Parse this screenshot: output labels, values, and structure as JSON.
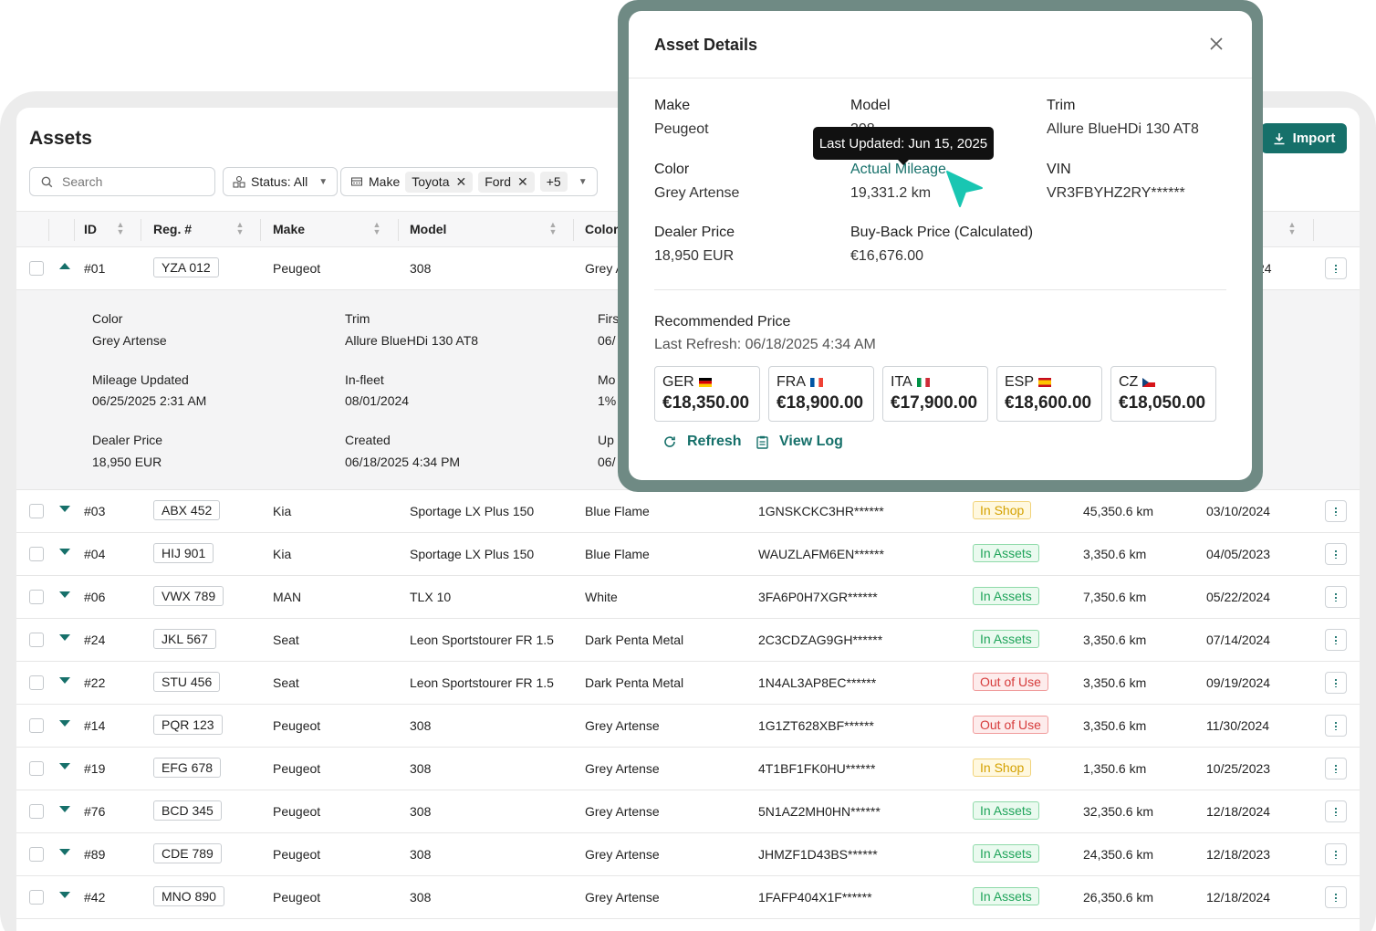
{
  "assets": {
    "title": "Assets",
    "import_label": "Import",
    "search_placeholder": "Search",
    "status_filter": "Status: All",
    "make_filter": {
      "label": "Make",
      "chips": [
        "Toyota",
        "Ford"
      ],
      "more": "+5"
    },
    "columns": [
      "ID",
      "Reg. #",
      "Make",
      "Model",
      "Color"
    ],
    "expanded_row": {
      "id": "#01",
      "reg": "YZA 012",
      "make": "Peugeot",
      "model": "308",
      "color_partial": "Grey A",
      "date_partial": "24",
      "fields": [
        {
          "label": "Color",
          "value": "Grey Artense"
        },
        {
          "label": "Trim",
          "value": "Allure BlueHDi 130 AT8"
        },
        {
          "label": "Firs",
          "value": "06/"
        },
        {
          "label": "Mileage Updated",
          "value": "06/25/2025 2:31 AM"
        },
        {
          "label": "In-fleet",
          "value": "08/01/2024"
        },
        {
          "label": "Mo",
          "value": "1%"
        },
        {
          "label": "Dealer Price",
          "value": "18,950 EUR"
        },
        {
          "label": "Created",
          "value": "06/18/2025 4:34 PM"
        },
        {
          "label": "Up",
          "value": "06/"
        }
      ]
    },
    "rows": [
      {
        "id": "#03",
        "reg": "ABX 452",
        "make": "Kia",
        "model": "Sportage LX Plus 150",
        "color": "Blue Flame",
        "vin": "1GNSKCKC3HR******",
        "status": "In Shop",
        "status_type": "shop",
        "mileage": "45,350.6 km",
        "date": "03/10/2024"
      },
      {
        "id": "#04",
        "reg": "HIJ 901",
        "make": "Kia",
        "model": "Sportage LX Plus 150",
        "color": "Blue Flame",
        "vin": "WAUZLAFM6EN******",
        "status": "In Assets",
        "status_type": "assets",
        "mileage": "3,350.6 km",
        "date": "04/05/2023"
      },
      {
        "id": "#06",
        "reg": "VWX 789",
        "make": "MAN",
        "model": "TLX 10",
        "color": "White",
        "vin": "3FA6P0H7XGR******",
        "status": "In Assets",
        "status_type": "assets",
        "mileage": "7,350.6 km",
        "date": "05/22/2024"
      },
      {
        "id": "#24",
        "reg": "JKL 567",
        "make": "Seat",
        "model": "Leon Sportstourer FR 1.5",
        "color": "Dark Penta Metal",
        "vin": "2C3CDZAG9GH******",
        "status": "In Assets",
        "status_type": "assets",
        "mileage": "3,350.6 km",
        "date": "07/14/2024"
      },
      {
        "id": "#22",
        "reg": "STU 456",
        "make": "Seat",
        "model": "Leon Sportstourer FR 1.5",
        "color": "Dark Penta Metal",
        "vin": "1N4AL3AP8EC******",
        "status": "Out of Use",
        "status_type": "out",
        "mileage": "3,350.6 km",
        "date": "09/19/2024"
      },
      {
        "id": "#14",
        "reg": "PQR 123",
        "make": "Peugeot",
        "model": "308",
        "color": "Grey Artense",
        "vin": "1G1ZT628XBF******",
        "status": "Out of Use",
        "status_type": "out",
        "mileage": "3,350.6 km",
        "date": "11/30/2024"
      },
      {
        "id": "#19",
        "reg": "EFG 678",
        "make": "Peugeot",
        "model": "308",
        "color": "Grey Artense",
        "vin": "4T1BF1FK0HU******",
        "status": "In Shop",
        "status_type": "shop",
        "mileage": "1,350.6 km",
        "date": "10/25/2023"
      },
      {
        "id": "#76",
        "reg": "BCD 345",
        "make": "Peugeot",
        "model": "308",
        "color": "Grey Artense",
        "vin": "5N1AZ2MH0HN******",
        "status": "In Assets",
        "status_type": "assets",
        "mileage": "32,350.6 km",
        "date": "12/18/2024"
      },
      {
        "id": "#89",
        "reg": "CDE 789",
        "make": "Peugeot",
        "model": "308",
        "color": "Grey Artense",
        "vin": "JHMZF1D43BS******",
        "status": "In Assets",
        "status_type": "assets",
        "mileage": "24,350.6 km",
        "date": "12/18/2023"
      },
      {
        "id": "#42",
        "reg": "MNO 890",
        "make": "Peugeot",
        "model": "308",
        "color": "Grey Artense",
        "vin": "1FAFP404X1F******",
        "status": "In Assets",
        "status_type": "assets",
        "mileage": "26,350.6 km",
        "date": "12/18/2024"
      }
    ]
  },
  "modal": {
    "title": "Asset Details",
    "make_label": "Make",
    "make_value": "Peugeot",
    "model_label": "Model",
    "model_value": "308",
    "trim_label": "Trim",
    "trim_value": "Allure BlueHDi 130 AT8",
    "color_label": "Color",
    "color_value": "Grey Artense",
    "mileage_label": "Actual Mileage",
    "mileage_value": "19,331.2 km",
    "vin_label": "VIN",
    "vin_value": "VR3FBYHZ2RY******",
    "dealer_label": "Dealer Price",
    "dealer_value": "18,950 EUR",
    "buyback_label": "Buy-Back Price (Calculated)",
    "buyback_value": "€16,676.00",
    "recommended_label": "Recommended Price",
    "last_refresh": "Last Refresh: 06/18/2025 4:34 AM",
    "prices": [
      {
        "code": "GER",
        "value": "€18,350.00"
      },
      {
        "code": "FRA",
        "value": "€18,900.00"
      },
      {
        "code": "ITA",
        "value": "€17,900.00"
      },
      {
        "code": "ESP",
        "value": "€18,600.00"
      },
      {
        "code": "CZ",
        "value": "€18,050.00"
      }
    ],
    "refresh_label": "Refresh",
    "viewlog_label": "View Log",
    "tooltip": "Last Updated: Jun 15, 2025"
  },
  "colors": {
    "accent": "#16706a",
    "modal_frame": "#6f8a84"
  }
}
